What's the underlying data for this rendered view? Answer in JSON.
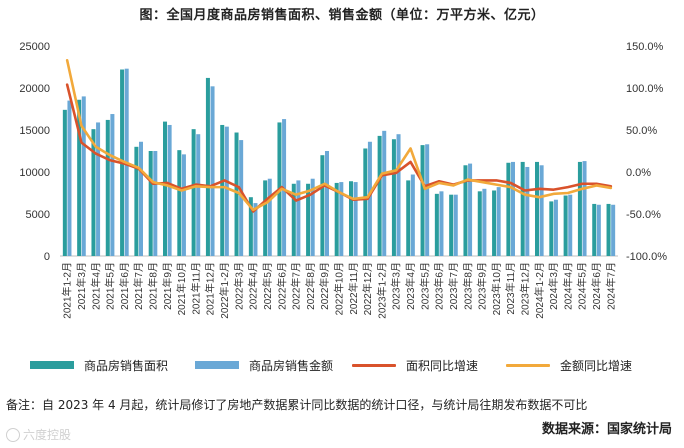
{
  "title": "图：全国月度商品房销售面积、销售金额（单位：万平方米、亿元）",
  "note": "备注：自 2023 年 4 月起，统计局修订了房地产数据累计同比数据的统计口径，与统计局往期发布数据不可比",
  "source": "数据来源：国家统计局",
  "watermark": "六度控股",
  "legend": {
    "area": "商品房销售面积",
    "sales": "商品房销售金额",
    "area_yoy": "面积同比增速",
    "sales_yoy": "金额同比增速"
  },
  "colors": {
    "area_bar": "#2a9d9d",
    "sales_bar": "#6aa8d6",
    "area_yoy_line": "#d9522b",
    "sales_yoy_line": "#f2a93b"
  },
  "chart_data": {
    "type": "bar+line",
    "categories": [
      "2021年1-2月",
      "2021年3月",
      "2021年4月",
      "2021年5月",
      "2021年6月",
      "2021年7月",
      "2021年8月",
      "2021年9月",
      "2021年10月",
      "2021年11月",
      "2021年12月",
      "2022年1-2月",
      "2022年3月",
      "2022年4月",
      "2022年5月",
      "2022年6月",
      "2022年7月",
      "2022年8月",
      "2022年9月",
      "2022年10月",
      "2022年11月",
      "2022年12月",
      "2023年1-2月",
      "2023年3月",
      "2023年4月",
      "2023年5月",
      "2023年6月",
      "2023年7月",
      "2023年8月",
      "2023年9月",
      "2023年10月",
      "2023年11月",
      "2023年12月",
      "2024年1-2月",
      "2024年3月",
      "2024年4月",
      "2024年5月",
      "2024年6月",
      "2024年7月"
    ],
    "y_left": {
      "min": 0,
      "max": 25000,
      "ticks": [
        "0",
        "5000",
        "10000",
        "15000",
        "20000",
        "25000"
      ]
    },
    "y_right": {
      "min": -100,
      "max": 150,
      "ticks": [
        "-100.0%",
        "-50.0%",
        "0.0%",
        "50.0%",
        "100.0%",
        "150.0%"
      ]
    },
    "series": [
      {
        "name": "商品房销售面积",
        "type": "bar",
        "axis": "left",
        "values": [
          17400,
          18600,
          15100,
          16200,
          22200,
          13000,
          12500,
          16000,
          12600,
          15100,
          21200,
          15600,
          14700,
          7000,
          9000,
          15900,
          8600,
          8600,
          12000,
          8700,
          8900,
          12800,
          14300,
          13900,
          9000,
          13200,
          7400,
          7300,
          10800,
          7700,
          7800,
          11100,
          11200,
          11200,
          6500,
          7200,
          11200,
          6200,
          6200
        ]
      },
      {
        "name": "商品房销售金额",
        "type": "bar",
        "axis": "left",
        "values": [
          18500,
          19000,
          15900,
          16900,
          22300,
          13600,
          12500,
          15600,
          12100,
          14500,
          20200,
          15400,
          13800,
          6300,
          9200,
          16300,
          9000,
          9200,
          12500,
          8800,
          8800,
          13600,
          14900,
          14500,
          9700,
          13300,
          7700,
          7300,
          11000,
          8000,
          8200,
          11200,
          10600,
          10800,
          6700,
          7300,
          11300,
          6100,
          6100
        ]
      },
      {
        "name": "面积同比增速",
        "type": "line",
        "axis": "right",
        "values": [
          104,
          35,
          22,
          14,
          10,
          4,
          -14,
          -13,
          -20,
          -15,
          -17,
          -10,
          -18,
          -47,
          -32,
          -18,
          -34,
          -27,
          -16,
          -24,
          -33,
          -32,
          -4,
          -1,
          12,
          -17,
          -11,
          -15,
          -10,
          -10,
          -10,
          -13,
          -22,
          -20,
          -21,
          -18,
          -14,
          -14,
          -17
        ]
      },
      {
        "name": "金额同比增速",
        "type": "line",
        "axis": "right",
        "values": [
          133,
          55,
          30,
          20,
          12,
          5,
          -12,
          -16,
          -22,
          -17,
          -18,
          -18,
          -25,
          -45,
          -36,
          -20,
          -27,
          -22,
          -14,
          -24,
          -32,
          -30,
          -2,
          2,
          28,
          -20,
          -13,
          -16,
          -9,
          -12,
          -15,
          -18,
          -27,
          -30,
          -26,
          -25,
          -20,
          -16,
          -19
        ]
      }
    ]
  }
}
